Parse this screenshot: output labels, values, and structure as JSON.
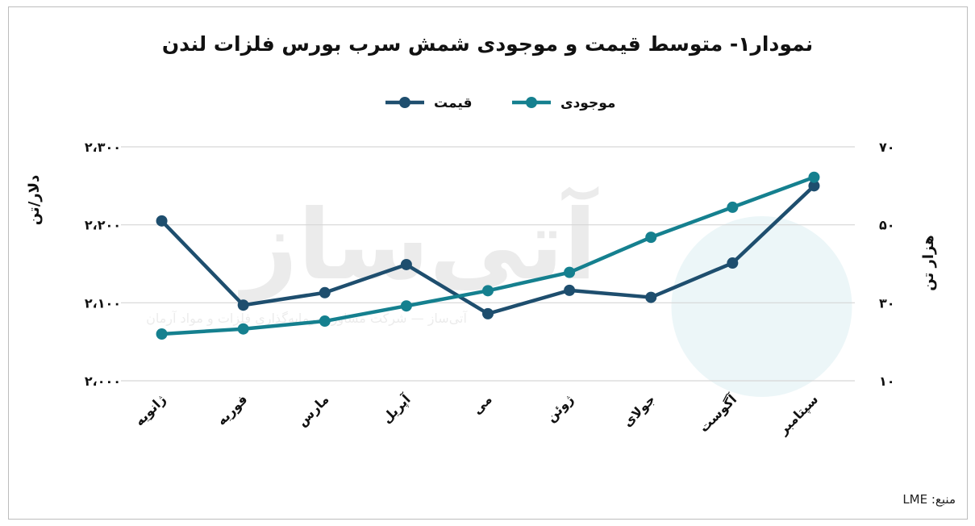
{
  "chart_data": {
    "type": "line",
    "title": "نمودار۱- متوسط قیمت و موجودی شمش سرب بورس فلزات لندن",
    "categories": [
      "ژانویه",
      "فوریه",
      "مارس",
      "آپریل",
      "می",
      "ژوئن",
      "جولای",
      "آگوست",
      "سپتامبر"
    ],
    "series": [
      {
        "name": "قیمت",
        "axis": "left",
        "color": "#1e4e6e",
        "values": [
          2205,
          2097,
          2113,
          2149,
          2086,
          2116,
          2107,
          2151,
          2250
        ]
      },
      {
        "name": "موجودی",
        "axis": "right",
        "color": "#15808f",
        "values": [
          22,
          23.3,
          25.3,
          29.2,
          33.1,
          37.8,
          46.8,
          54.5,
          62.2
        ]
      }
    ],
    "y_left": {
      "label": "دلار/تن",
      "ylim": [
        2000,
        2300
      ],
      "ticks": [
        "۲،۰۰۰",
        "۲،۱۰۰",
        "۲،۲۰۰",
        "۲،۳۰۰"
      ],
      "tick_values": [
        2000,
        2100,
        2200,
        2300
      ]
    },
    "y_right": {
      "label": "هزار تن",
      "ylim": [
        10,
        70
      ],
      "ticks": [
        "۱۰",
        "۳۰",
        "۵۰",
        "۷۰"
      ],
      "tick_values": [
        10,
        30,
        50,
        70
      ]
    },
    "legend": "top-center",
    "grid": true
  },
  "source": "منبع: LME",
  "watermark": "آتی‌ساز — شرکت مشاور سرمایه‌گذاری فلزات و مواد آرمان"
}
